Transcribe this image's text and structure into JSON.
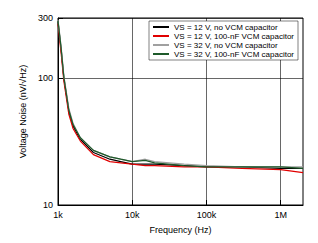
{
  "chart_data": {
    "type": "line",
    "x_label": "Frequency (Hz)",
    "y_label": "Voltage Noise (nV/√Hz)",
    "log": true,
    "grid": true,
    "legend": "upper right",
    "xlim": [
      1000,
      2000000
    ],
    "xticks": [
      {
        "value": 1000,
        "label": "1k"
      },
      {
        "value": 10000,
        "label": "10k"
      },
      {
        "value": 100000,
        "label": "100k"
      },
      {
        "value": 1000000,
        "label": "1M"
      }
    ],
    "ylim": [
      10,
      300
    ],
    "yticks": [
      10,
      100,
      300
    ],
    "x": [
      1000,
      1100,
      1200,
      1400,
      1600,
      2000,
      3000,
      5000,
      7000,
      10000,
      15000,
      20000,
      50000,
      100000,
      300000,
      1000000,
      2000000
    ],
    "series": [
      {
        "name": "VS = 12 V, no VCM capacitor",
        "color": "#000000",
        "values": [
          280,
          170,
          100,
          55,
          42,
          33,
          26,
          23,
          22,
          21,
          21,
          21,
          20.5,
          20,
          20,
          19.5,
          19.5
        ]
      },
      {
        "name": "VS = 12 V, 100-nF VCM capacitor",
        "color": "#e00000",
        "values": [
          270,
          160,
          95,
          52,
          40,
          32,
          25,
          22,
          21.5,
          21,
          20.5,
          20.5,
          20,
          20,
          19.5,
          19,
          18
        ]
      },
      {
        "name": "VS = 32 V, no VCM capacitor",
        "color": "#a0a0a0",
        "values": [
          290,
          180,
          105,
          58,
          44,
          34,
          27,
          24,
          23,
          22,
          23,
          22,
          21,
          20.5,
          20,
          20,
          20
        ]
      },
      {
        "name": "VS = 32 V, 100-nF VCM capacitor",
        "color": "#1e5a2a",
        "values": [
          285,
          175,
          102,
          56,
          43,
          34,
          27,
          24,
          23,
          22,
          22.5,
          21.5,
          20.5,
          20,
          20,
          20,
          19.5
        ]
      }
    ]
  }
}
